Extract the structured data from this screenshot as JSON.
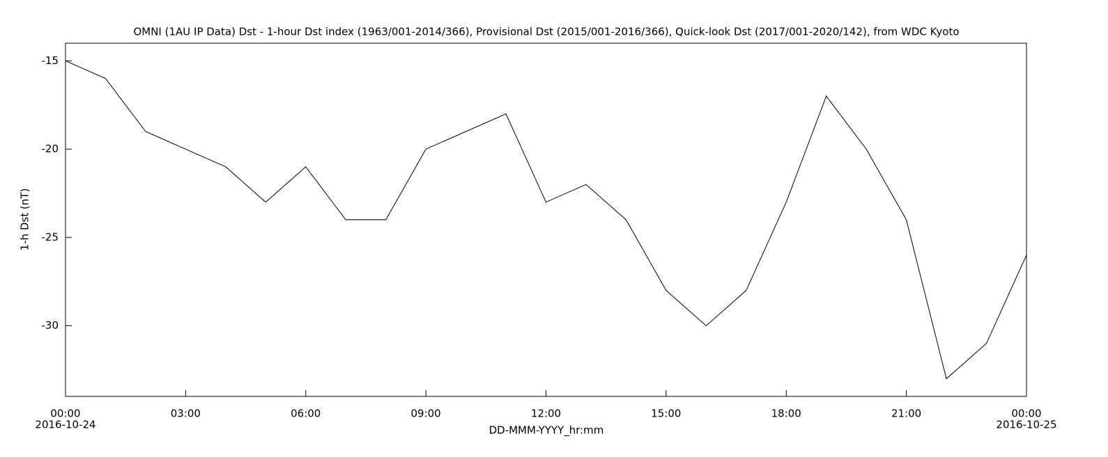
{
  "chart_data": {
    "type": "line",
    "title": "OMNI (1AU IP Data)  Dst - 1-hour Dst index (1963/001-2014/366), Provisional Dst (2015/001-2016/366), Quick-look Dst (2017/001-2020/142), from WDC Kyoto",
    "x_label": "DD-MMM-YYYY_hr:mm",
    "y_label": "1-h Dst (nT)",
    "x": [
      "2016-10-24 00:00",
      "2016-10-24 01:00",
      "2016-10-24 02:00",
      "2016-10-24 03:00",
      "2016-10-24 04:00",
      "2016-10-24 05:00",
      "2016-10-24 06:00",
      "2016-10-24 07:00",
      "2016-10-24 08:00",
      "2016-10-24 09:00",
      "2016-10-24 10:00",
      "2016-10-24 11:00",
      "2016-10-24 12:00",
      "2016-10-24 13:00",
      "2016-10-24 14:00",
      "2016-10-24 15:00",
      "2016-10-24 16:00",
      "2016-10-24 17:00",
      "2016-10-24 18:00",
      "2016-10-24 19:00",
      "2016-10-24 20:00",
      "2016-10-24 21:00",
      "2016-10-24 22:00",
      "2016-10-24 23:00",
      "2016-10-25 00:00"
    ],
    "series": [
      {
        "name": "1-h Dst",
        "color": "#000000",
        "values": [
          -15,
          -16,
          -19,
          -20,
          -21,
          -23,
          -21,
          -24,
          -24,
          -20,
          -19,
          -18,
          -23,
          -22,
          -24,
          -28,
          -30,
          -28,
          -23,
          -17,
          -20,
          -24,
          -33,
          -31,
          -26
        ]
      }
    ],
    "xlim": [
      "2016-10-24 00:00",
      "2016-10-25 00:00"
    ],
    "xticks": [
      {
        "value": "2016-10-24 00:00",
        "label": "00:00",
        "date": "2016-10-24"
      },
      {
        "value": "2016-10-24 03:00",
        "label": "03:00"
      },
      {
        "value": "2016-10-24 06:00",
        "label": "06:00"
      },
      {
        "value": "2016-10-24 09:00",
        "label": "09:00"
      },
      {
        "value": "2016-10-24 12:00",
        "label": "12:00"
      },
      {
        "value": "2016-10-24 15:00",
        "label": "15:00"
      },
      {
        "value": "2016-10-24 18:00",
        "label": "18:00"
      },
      {
        "value": "2016-10-24 21:00",
        "label": "21:00"
      },
      {
        "value": "2016-10-25 00:00",
        "label": "00:00",
        "date": "2016-10-25"
      }
    ],
    "ylim": [
      -34,
      -14
    ],
    "yticks": [
      -30,
      -25,
      -20,
      -15
    ],
    "grid": false
  }
}
